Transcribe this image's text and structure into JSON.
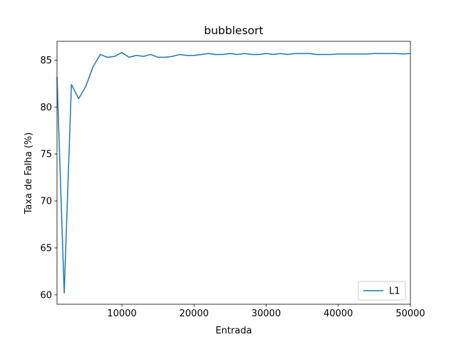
{
  "chart_data": {
    "type": "line",
    "title": "bubblesort",
    "xlabel": "Entrada",
    "ylabel": "Taxa de Falha (%)",
    "xlim": [
      1000,
      50000
    ],
    "ylim": [
      59.0,
      87.0
    ],
    "xticks": [
      10000,
      20000,
      30000,
      40000,
      50000
    ],
    "xtick_labels": [
      "10000",
      "20000",
      "30000",
      "40000",
      "50000"
    ],
    "yticks": [
      60,
      65,
      70,
      75,
      80,
      85
    ],
    "ytick_labels": [
      "60",
      "65",
      "70",
      "75",
      "80",
      "85"
    ],
    "grid": false,
    "legend_position": "lower-right",
    "series": [
      {
        "name": "L1",
        "color": "#1f77b4",
        "x": [
          1000,
          2000,
          3000,
          4000,
          5000,
          6000,
          7000,
          8000,
          9000,
          10000,
          11000,
          12000,
          13000,
          14000,
          15000,
          16000,
          17000,
          18000,
          19000,
          20000,
          21000,
          22000,
          23000,
          24000,
          25000,
          26000,
          27000,
          28000,
          29000,
          30000,
          31000,
          32000,
          33000,
          34000,
          35000,
          36000,
          37000,
          38000,
          39000,
          40000,
          41000,
          42000,
          43000,
          44000,
          45000,
          46000,
          47000,
          48000,
          49000,
          50000
        ],
        "y": [
          83.2,
          60.2,
          82.4,
          80.9,
          82.2,
          84.3,
          85.6,
          85.3,
          85.4,
          85.8,
          85.3,
          85.5,
          85.4,
          85.6,
          85.3,
          85.3,
          85.4,
          85.6,
          85.5,
          85.5,
          85.6,
          85.7,
          85.6,
          85.6,
          85.7,
          85.6,
          85.7,
          85.6,
          85.6,
          85.7,
          85.6,
          85.7,
          85.6,
          85.7,
          85.7,
          85.7,
          85.6,
          85.6,
          85.6,
          85.65,
          85.65,
          85.65,
          85.65,
          85.65,
          85.7,
          85.7,
          85.7,
          85.7,
          85.65,
          85.7
        ]
      }
    ]
  }
}
